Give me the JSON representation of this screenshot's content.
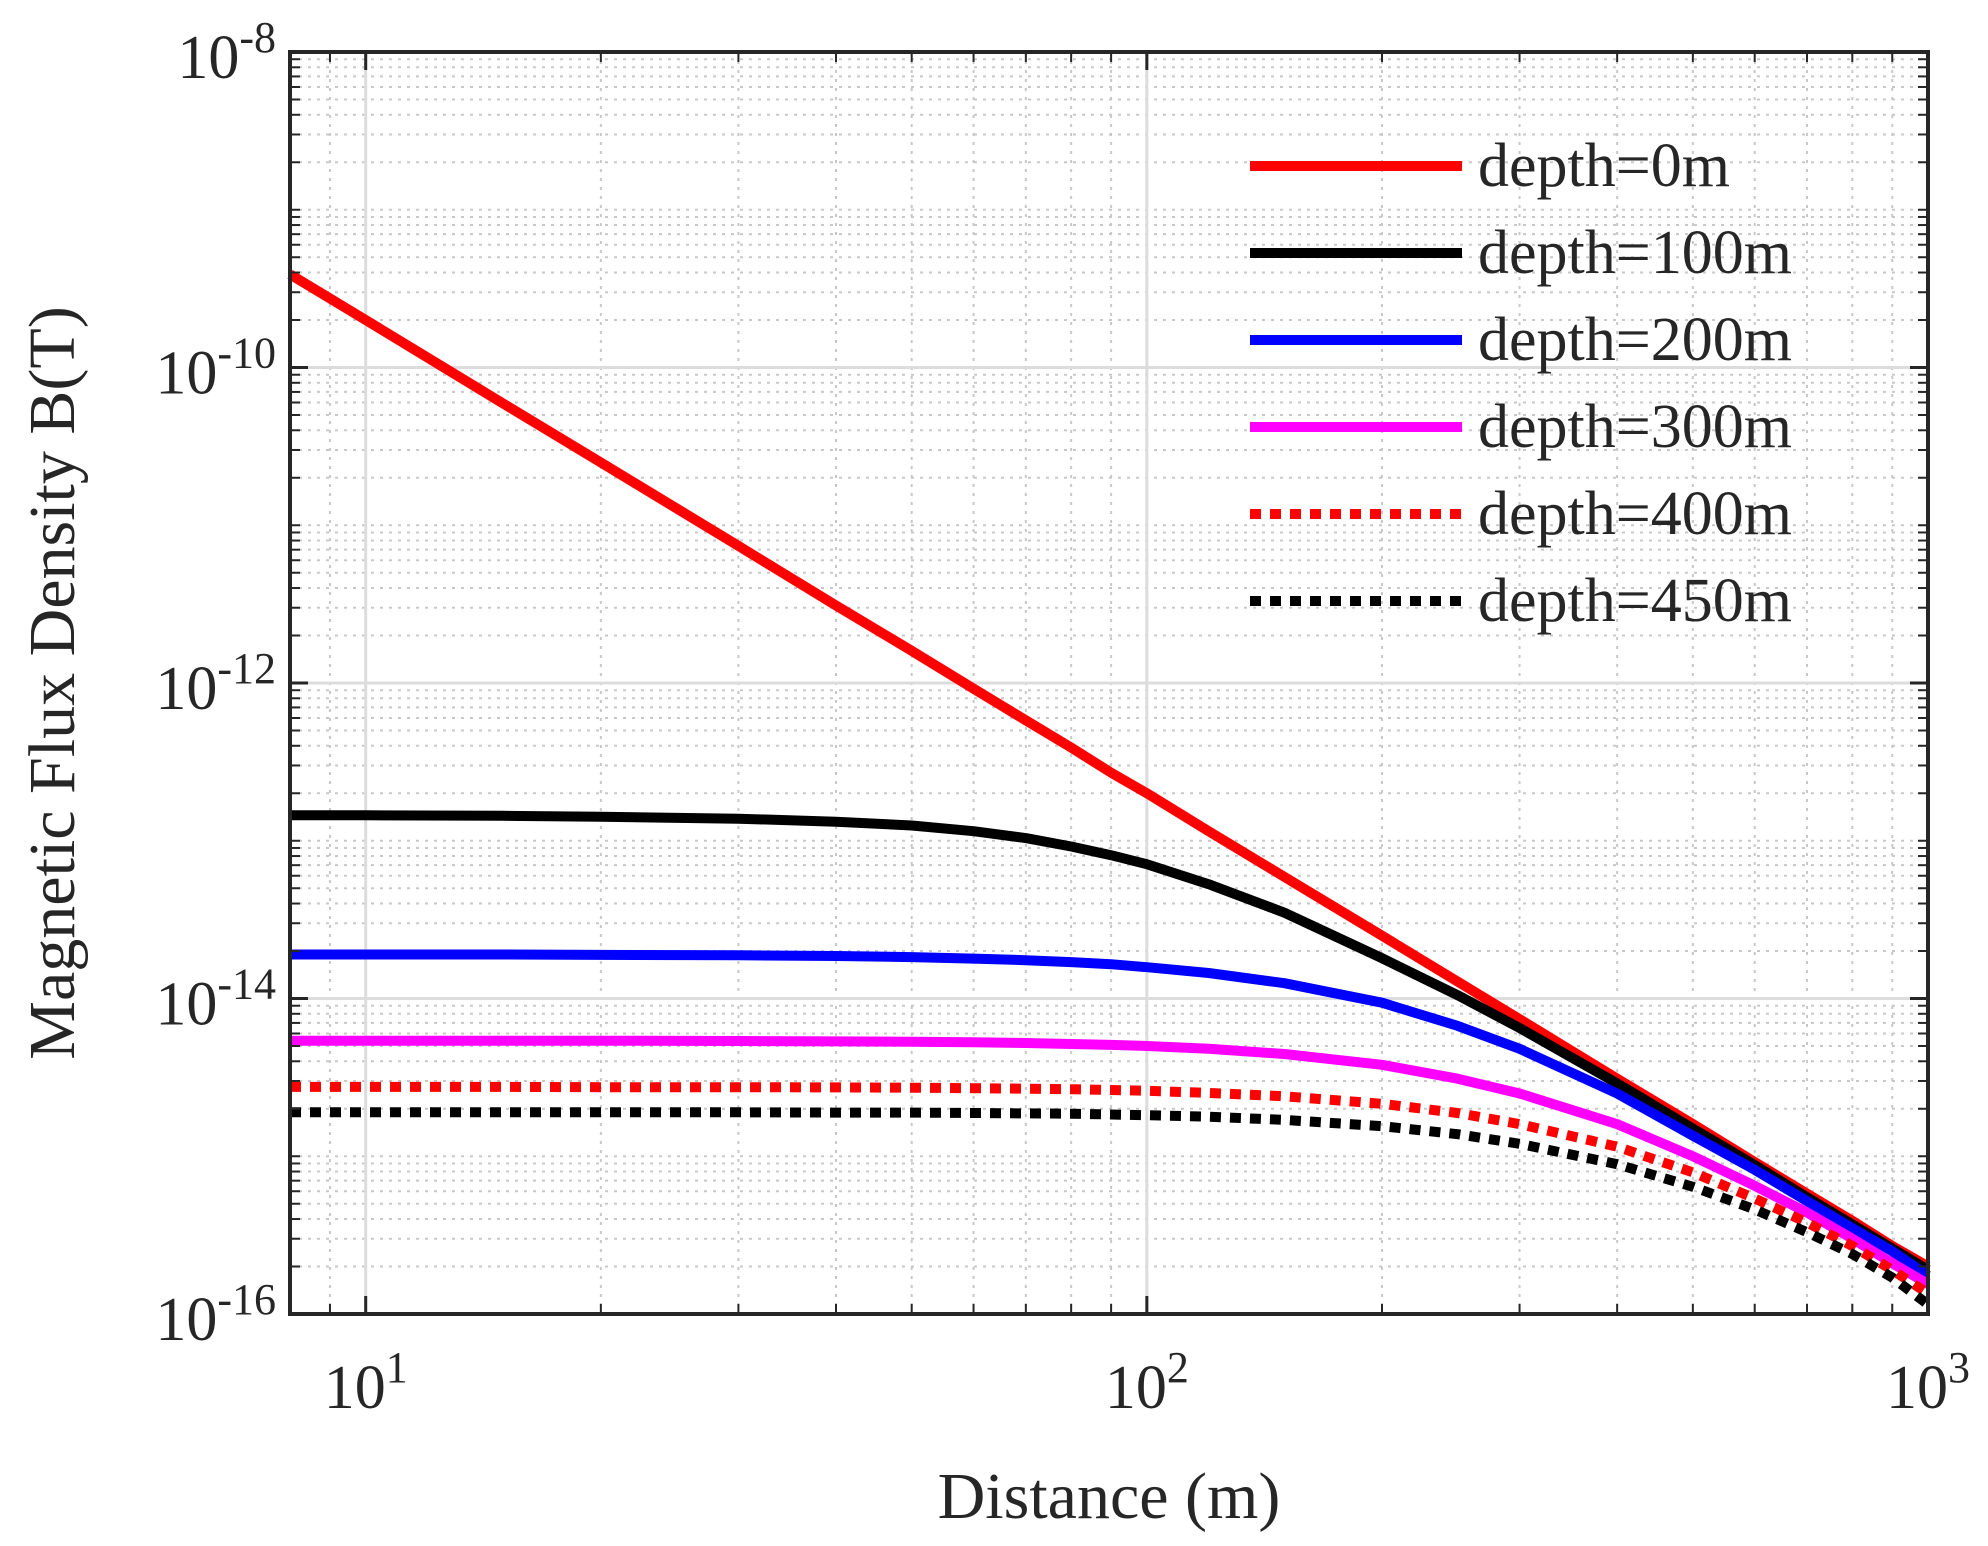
{
  "chart_data": {
    "type": "line",
    "title": "",
    "xlabel": "Distance (m)",
    "ylabel": "Magnetic Flux Density B(T)",
    "xscale": "log",
    "yscale": "log",
    "xlim": [
      8,
      1000
    ],
    "ylim": [
      1e-16,
      1e-08
    ],
    "grid": true,
    "minor_grid": true,
    "legend_position": "top-right",
    "x_ticks": [
      {
        "value": 10,
        "base": "10",
        "exp": "1"
      },
      {
        "value": 100,
        "base": "10",
        "exp": "2"
      },
      {
        "value": 1000,
        "base": "10",
        "exp": "3"
      }
    ],
    "y_ticks": [
      {
        "value": 1e-16,
        "base": "10",
        "exp": "-16"
      },
      {
        "value": 1e-14,
        "base": "10",
        "exp": "-14"
      },
      {
        "value": 1e-12,
        "base": "10",
        "exp": "-12"
      },
      {
        "value": 1e-10,
        "base": "10",
        "exp": "-10"
      },
      {
        "value": 1e-08,
        "base": "10",
        "exp": "-8"
      }
    ],
    "x": [
      8,
      10,
      15,
      20,
      30,
      40,
      50,
      60,
      70,
      80,
      90,
      100,
      120,
      150,
      200,
      250,
      300,
      400,
      500,
      600,
      700,
      800,
      900,
      1000
    ],
    "series": [
      {
        "name": "depth=0m",
        "color": "#ff0000",
        "dash": "solid",
        "values": [
          3.9e-10,
          2e-10,
          5.9e-11,
          2.5e-11,
          7.4e-12,
          3.1e-12,
          1.6e-12,
          9.2e-13,
          5.8e-13,
          3.9e-13,
          2.7e-13,
          2e-13,
          1.15e-13,
          5.9e-14,
          2.5e-14,
          1.28e-14,
          7.4e-15,
          3.1e-15,
          1.6e-15,
          9.2e-16,
          5.8e-16,
          3.9e-16,
          2.7e-16,
          2e-16
        ]
      },
      {
        "name": "depth=100m",
        "color": "#000000",
        "dash": "solid",
        "values": [
          1.45e-13,
          1.45e-13,
          1.44e-13,
          1.42e-13,
          1.38e-13,
          1.32e-13,
          1.25e-13,
          1.15e-13,
          1.04e-13,
          9.2e-14,
          8.1e-14,
          7.1e-14,
          5.3e-14,
          3.5e-14,
          1.8e-14,
          1.05e-14,
          6.5e-15,
          2.9e-15,
          1.5e-15,
          8.8e-16,
          5.5e-16,
          3.7e-16,
          2.6e-16,
          1.9e-16
        ]
      },
      {
        "name": "depth=200m",
        "color": "#0000ff",
        "dash": "solid",
        "values": [
          1.9e-14,
          1.9e-14,
          1.9e-14,
          1.89e-14,
          1.88e-14,
          1.86e-14,
          1.83e-14,
          1.79e-14,
          1.75e-14,
          1.7e-14,
          1.65e-14,
          1.58e-14,
          1.45e-14,
          1.25e-14,
          9.4e-15,
          6.7e-15,
          4.8e-15,
          2.5e-15,
          1.35e-15,
          8.2e-16,
          5.2e-16,
          3.5e-16,
          2.5e-16,
          1.75e-16
        ]
      },
      {
        "name": "depth=300m",
        "color": "#ff00ff",
        "dash": "solid",
        "values": [
          5.4e-15,
          5.4e-15,
          5.4e-15,
          5.4e-15,
          5.38e-15,
          5.35e-15,
          5.32e-15,
          5.28e-15,
          5.22e-15,
          5.15e-15,
          5.08e-15,
          5e-15,
          4.8e-15,
          4.45e-15,
          3.8e-15,
          3.1e-15,
          2.5e-15,
          1.6e-15,
          1e-15,
          6.5e-16,
          4.4e-16,
          3e-16,
          2.1e-16,
          1.55e-16
        ]
      },
      {
        "name": "depth=400m",
        "color": "#ff0000",
        "dash": "dotted",
        "values": [
          2.75e-15,
          2.75e-15,
          2.75e-15,
          2.74e-15,
          2.74e-15,
          2.73e-15,
          2.72e-15,
          2.7e-15,
          2.68e-15,
          2.66e-15,
          2.63e-15,
          2.6e-15,
          2.52e-15,
          2.4e-15,
          2.15e-15,
          1.88e-15,
          1.6e-15,
          1.15e-15,
          7.9e-16,
          5.4e-16,
          3.8e-16,
          2.7e-16,
          1.9e-16,
          1.35e-16
        ]
      },
      {
        "name": "depth=450m",
        "color": "#000000",
        "dash": "dotted",
        "values": [
          1.9e-15,
          1.9e-15,
          1.9e-15,
          1.9e-15,
          1.9e-15,
          1.89e-15,
          1.89e-15,
          1.88e-15,
          1.87e-15,
          1.86e-15,
          1.84e-15,
          1.82e-15,
          1.78e-15,
          1.7e-15,
          1.55e-15,
          1.38e-15,
          1.2e-15,
          8.9e-16,
          6.4e-16,
          4.6e-16,
          3.3e-16,
          2.4e-16,
          1.7e-16,
          1.15e-16
        ]
      }
    ]
  }
}
